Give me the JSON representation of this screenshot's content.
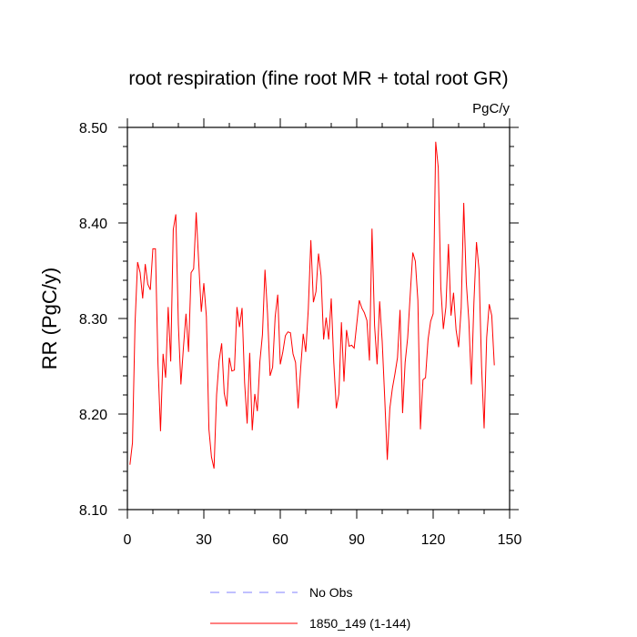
{
  "chart_data": {
    "type": "line",
    "title": "root respiration (fine root MR + total root GR)",
    "units_label": "PgC/y",
    "ylabel": "RR  (PgC/y)",
    "xlabel": "",
    "xlim": [
      0,
      150
    ],
    "ylim": [
      8.1,
      8.5
    ],
    "xticks": [
      0,
      30,
      60,
      90,
      120,
      150
    ],
    "xtick_labels": [
      "0",
      "30",
      "60",
      "90",
      "120",
      "150"
    ],
    "yticks": [
      8.1,
      8.2,
      8.3,
      8.4,
      8.5
    ],
    "ytick_labels": [
      "8.10",
      "8.20",
      "8.30",
      "8.40",
      "8.50"
    ],
    "grid": false,
    "legend_position": "bottom",
    "series": [
      {
        "name": "No Obs",
        "color": "#8080ff",
        "style": "dashed",
        "x": [],
        "y": []
      },
      {
        "name": "1850_149 (1-144)",
        "color": "#ff0000",
        "style": "solid",
        "x": [
          1,
          2,
          3,
          4,
          5,
          6,
          7,
          8,
          9,
          10,
          11,
          12,
          13,
          14,
          15,
          16,
          17,
          18,
          19,
          20,
          21,
          22,
          23,
          24,
          25,
          26,
          27,
          28,
          29,
          30,
          31,
          32,
          33,
          34,
          35,
          36,
          37,
          38,
          39,
          40,
          41,
          42,
          43,
          44,
          45,
          46,
          47,
          48,
          49,
          50,
          51,
          52,
          53,
          54,
          55,
          56,
          57,
          58,
          59,
          60,
          61,
          62,
          63,
          64,
          65,
          66,
          67,
          68,
          69,
          70,
          71,
          72,
          73,
          74,
          75,
          76,
          77,
          78,
          79,
          80,
          81,
          82,
          83,
          84,
          85,
          86,
          87,
          88,
          89,
          90,
          91,
          92,
          93,
          94,
          95,
          96,
          97,
          98,
          99,
          100,
          101,
          102,
          103,
          104,
          105,
          106,
          107,
          108,
          109,
          110,
          111,
          112,
          113,
          114,
          115,
          116,
          117,
          118,
          119,
          120,
          121,
          122,
          123,
          124,
          125,
          126,
          127,
          128,
          129,
          130,
          131,
          132,
          133,
          134,
          135,
          136,
          137,
          138,
          139,
          140,
          141,
          142,
          143,
          144
        ],
        "y": [
          8.147,
          8.17,
          8.295,
          8.359,
          8.348,
          8.321,
          8.357,
          8.336,
          8.33,
          8.373,
          8.373,
          8.253,
          8.182,
          8.263,
          8.238,
          8.312,
          8.255,
          8.393,
          8.409,
          8.294,
          8.231,
          8.27,
          8.305,
          8.265,
          8.348,
          8.352,
          8.411,
          8.358,
          8.307,
          8.337,
          8.302,
          8.184,
          8.155,
          8.143,
          8.22,
          8.256,
          8.274,
          8.222,
          8.208,
          8.259,
          8.245,
          8.246,
          8.312,
          8.291,
          8.311,
          8.233,
          8.19,
          8.264,
          8.183,
          8.221,
          8.203,
          8.255,
          8.283,
          8.351,
          8.305,
          8.24,
          8.249,
          8.302,
          8.325,
          8.252,
          8.265,
          8.282,
          8.286,
          8.285,
          8.263,
          8.254,
          8.206,
          8.248,
          8.284,
          8.265,
          8.31,
          8.382,
          8.317,
          8.328,
          8.368,
          8.345,
          8.278,
          8.301,
          8.278,
          8.321,
          8.254,
          8.206,
          8.221,
          8.296,
          8.234,
          8.288,
          8.271,
          8.272,
          8.269,
          8.294,
          8.319,
          8.311,
          8.306,
          8.298,
          8.256,
          8.394,
          8.293,
          8.252,
          8.318,
          8.276,
          8.216,
          8.152,
          8.206,
          8.227,
          8.242,
          8.259,
          8.309,
          8.201,
          8.254,
          8.28,
          8.325,
          8.369,
          8.36,
          8.319,
          8.184,
          8.236,
          8.238,
          8.278,
          8.297,
          8.305,
          8.485,
          8.458,
          8.333,
          8.289,
          8.312,
          8.378,
          8.303,
          8.327,
          8.288,
          8.27,
          8.311,
          8.421,
          8.338,
          8.298,
          8.231,
          8.317,
          8.38,
          8.351,
          8.25,
          8.185,
          8.28,
          8.315,
          8.303,
          8.251
        ]
      }
    ]
  }
}
